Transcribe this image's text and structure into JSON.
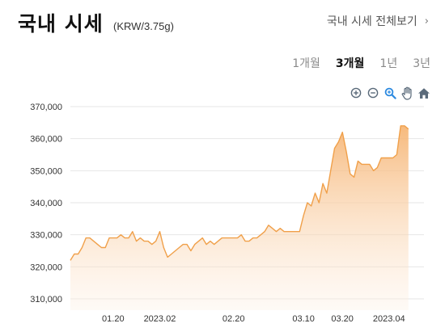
{
  "header": {
    "title": "국내 시세",
    "unit": "(KRW/3.75g)",
    "all_link": "국내 시세 전체보기",
    "chevron": "›"
  },
  "periods": [
    {
      "label": "1개월",
      "active": false
    },
    {
      "label": "3개월",
      "active": true
    },
    {
      "label": "1년",
      "active": false
    },
    {
      "label": "3년",
      "active": false
    }
  ],
  "toolbar": {
    "icons": [
      "zoom-in-icon",
      "zoom-out-icon",
      "magnify-icon",
      "pan-hand-icon",
      "home-icon"
    ]
  },
  "colors": {
    "line": "#f0a04a",
    "fill_top": "#f6b676",
    "grid": "#e6e6e6",
    "icon": "#5a6a7a",
    "magnify": "#2d8ae0"
  },
  "chart_data": {
    "type": "area",
    "ylabel": "",
    "xlabel": "",
    "ylim": [
      310000,
      370000
    ],
    "yticks": [
      310000,
      320000,
      330000,
      340000,
      350000,
      360000,
      370000
    ],
    "ytick_labels": [
      "310,000",
      "320,000",
      "330,000",
      "340,000",
      "350,000",
      "360,000",
      "370,000"
    ],
    "xrange": [
      "2023-01-09",
      "2023-04-10"
    ],
    "xticks": [
      {
        "date": "2023-01-20",
        "label": "01.20"
      },
      {
        "date": "2023-02-01",
        "label": "2023.02"
      },
      {
        "date": "2023-02-20",
        "label": "02.20"
      },
      {
        "date": "2023-03-10",
        "label": "03.10"
      },
      {
        "date": "2023-03-20",
        "label": "03.20"
      },
      {
        "date": "2023-04-01",
        "label": "2023.04"
      }
    ],
    "series": [
      {
        "points": [
          [
            "2023-01-09",
            322000
          ],
          [
            "2023-01-10",
            324000
          ],
          [
            "2023-01-11",
            324000
          ],
          [
            "2023-01-12",
            326000
          ],
          [
            "2023-01-13",
            329000
          ],
          [
            "2023-01-14",
            329000
          ],
          [
            "2023-01-15",
            328000
          ],
          [
            "2023-01-16",
            327000
          ],
          [
            "2023-01-17",
            326000
          ],
          [
            "2023-01-18",
            326000
          ],
          [
            "2023-01-19",
            329000
          ],
          [
            "2023-01-20",
            329000
          ],
          [
            "2023-01-21",
            329000
          ],
          [
            "2023-01-22",
            330000
          ],
          [
            "2023-01-23",
            329000
          ],
          [
            "2023-01-24",
            329000
          ],
          [
            "2023-01-25",
            331000
          ],
          [
            "2023-01-26",
            328000
          ],
          [
            "2023-01-27",
            329000
          ],
          [
            "2023-01-28",
            328000
          ],
          [
            "2023-01-29",
            328000
          ],
          [
            "2023-01-30",
            327000
          ],
          [
            "2023-01-31",
            328000
          ],
          [
            "2023-02-01",
            331000
          ],
          [
            "2023-02-02",
            326000
          ],
          [
            "2023-02-03",
            323000
          ],
          [
            "2023-02-04",
            324000
          ],
          [
            "2023-02-05",
            325000
          ],
          [
            "2023-02-06",
            326000
          ],
          [
            "2023-02-07",
            327000
          ],
          [
            "2023-02-08",
            327000
          ],
          [
            "2023-02-09",
            325000
          ],
          [
            "2023-02-10",
            327000
          ],
          [
            "2023-02-11",
            328000
          ],
          [
            "2023-02-12",
            329000
          ],
          [
            "2023-02-13",
            327000
          ],
          [
            "2023-02-14",
            328000
          ],
          [
            "2023-02-15",
            327000
          ],
          [
            "2023-02-16",
            328000
          ],
          [
            "2023-02-17",
            329000
          ],
          [
            "2023-02-18",
            329000
          ],
          [
            "2023-02-19",
            329000
          ],
          [
            "2023-02-20",
            329000
          ],
          [
            "2023-02-21",
            329000
          ],
          [
            "2023-02-22",
            330000
          ],
          [
            "2023-02-23",
            328000
          ],
          [
            "2023-02-24",
            328000
          ],
          [
            "2023-02-25",
            329000
          ],
          [
            "2023-02-26",
            329000
          ],
          [
            "2023-02-27",
            330000
          ],
          [
            "2023-02-28",
            331000
          ],
          [
            "2023-03-01",
            333000
          ],
          [
            "2023-03-02",
            332000
          ],
          [
            "2023-03-03",
            331000
          ],
          [
            "2023-03-04",
            332000
          ],
          [
            "2023-03-05",
            331000
          ],
          [
            "2023-03-06",
            331000
          ],
          [
            "2023-03-07",
            331000
          ],
          [
            "2023-03-08",
            331000
          ],
          [
            "2023-03-09",
            331000
          ],
          [
            "2023-03-10",
            336000
          ],
          [
            "2023-03-11",
            340000
          ],
          [
            "2023-03-12",
            339000
          ],
          [
            "2023-03-13",
            343000
          ],
          [
            "2023-03-14",
            340000
          ],
          [
            "2023-03-15",
            346000
          ],
          [
            "2023-03-16",
            343000
          ],
          [
            "2023-03-17",
            350000
          ],
          [
            "2023-03-18",
            357000
          ],
          [
            "2023-03-19",
            359000
          ],
          [
            "2023-03-20",
            362000
          ],
          [
            "2023-03-21",
            356000
          ],
          [
            "2023-03-22",
            349000
          ],
          [
            "2023-03-23",
            348000
          ],
          [
            "2023-03-24",
            353000
          ],
          [
            "2023-03-25",
            352000
          ],
          [
            "2023-03-26",
            352000
          ],
          [
            "2023-03-27",
            352000
          ],
          [
            "2023-03-28",
            350000
          ],
          [
            "2023-03-29",
            351000
          ],
          [
            "2023-03-30",
            354000
          ],
          [
            "2023-03-31",
            354000
          ],
          [
            "2023-04-01",
            354000
          ],
          [
            "2023-04-02",
            354000
          ],
          [
            "2023-04-03",
            355000
          ],
          [
            "2023-04-04",
            364000
          ],
          [
            "2023-04-05",
            364000
          ],
          [
            "2023-04-06",
            363000
          ]
        ]
      }
    ]
  }
}
